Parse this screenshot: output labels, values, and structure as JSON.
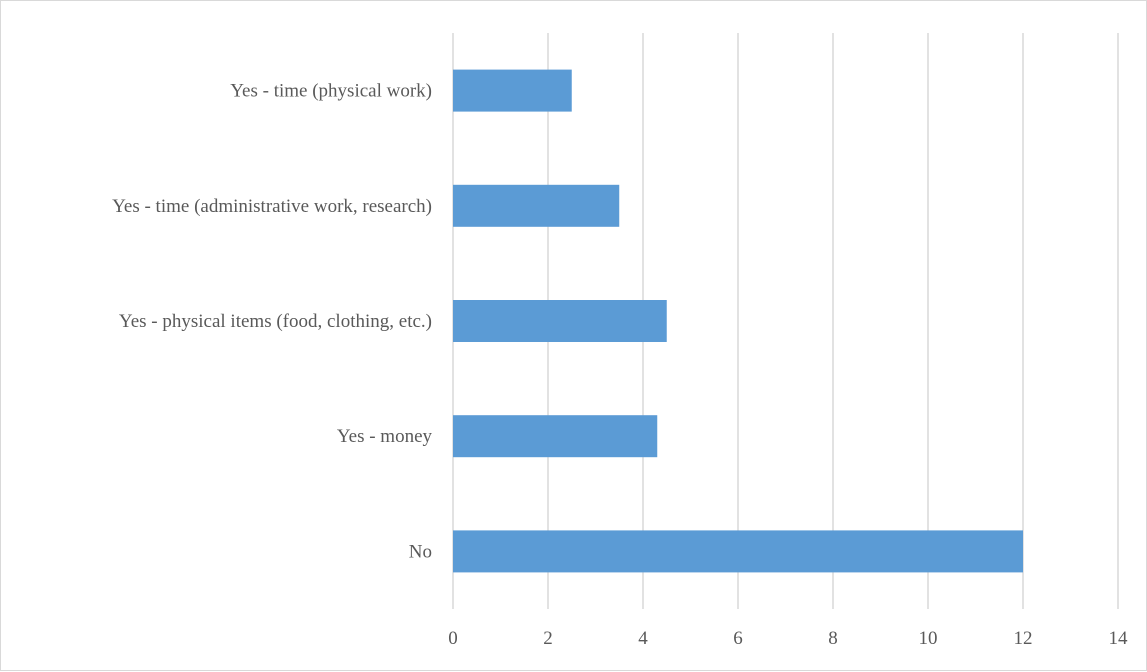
{
  "chart_data": {
    "type": "bar",
    "orientation": "horizontal",
    "categories": [
      "Yes - time (physical work)",
      "Yes - time (administrative work, research)",
      "Yes - physical items (food, clothing, etc.)",
      "Yes - money",
      "No"
    ],
    "values": [
      2.5,
      3.5,
      4.5,
      4.3,
      12
    ],
    "title": "",
    "xlabel": "",
    "ylabel": "",
    "xlim": [
      0,
      14
    ],
    "x_ticks": [
      0,
      2,
      4,
      6,
      8,
      10,
      12,
      14
    ],
    "grid": "vertical",
    "legend": "none",
    "bar_color": "#5b9bd5",
    "grid_color": "#d9d9d9",
    "label_color": "#595959"
  }
}
